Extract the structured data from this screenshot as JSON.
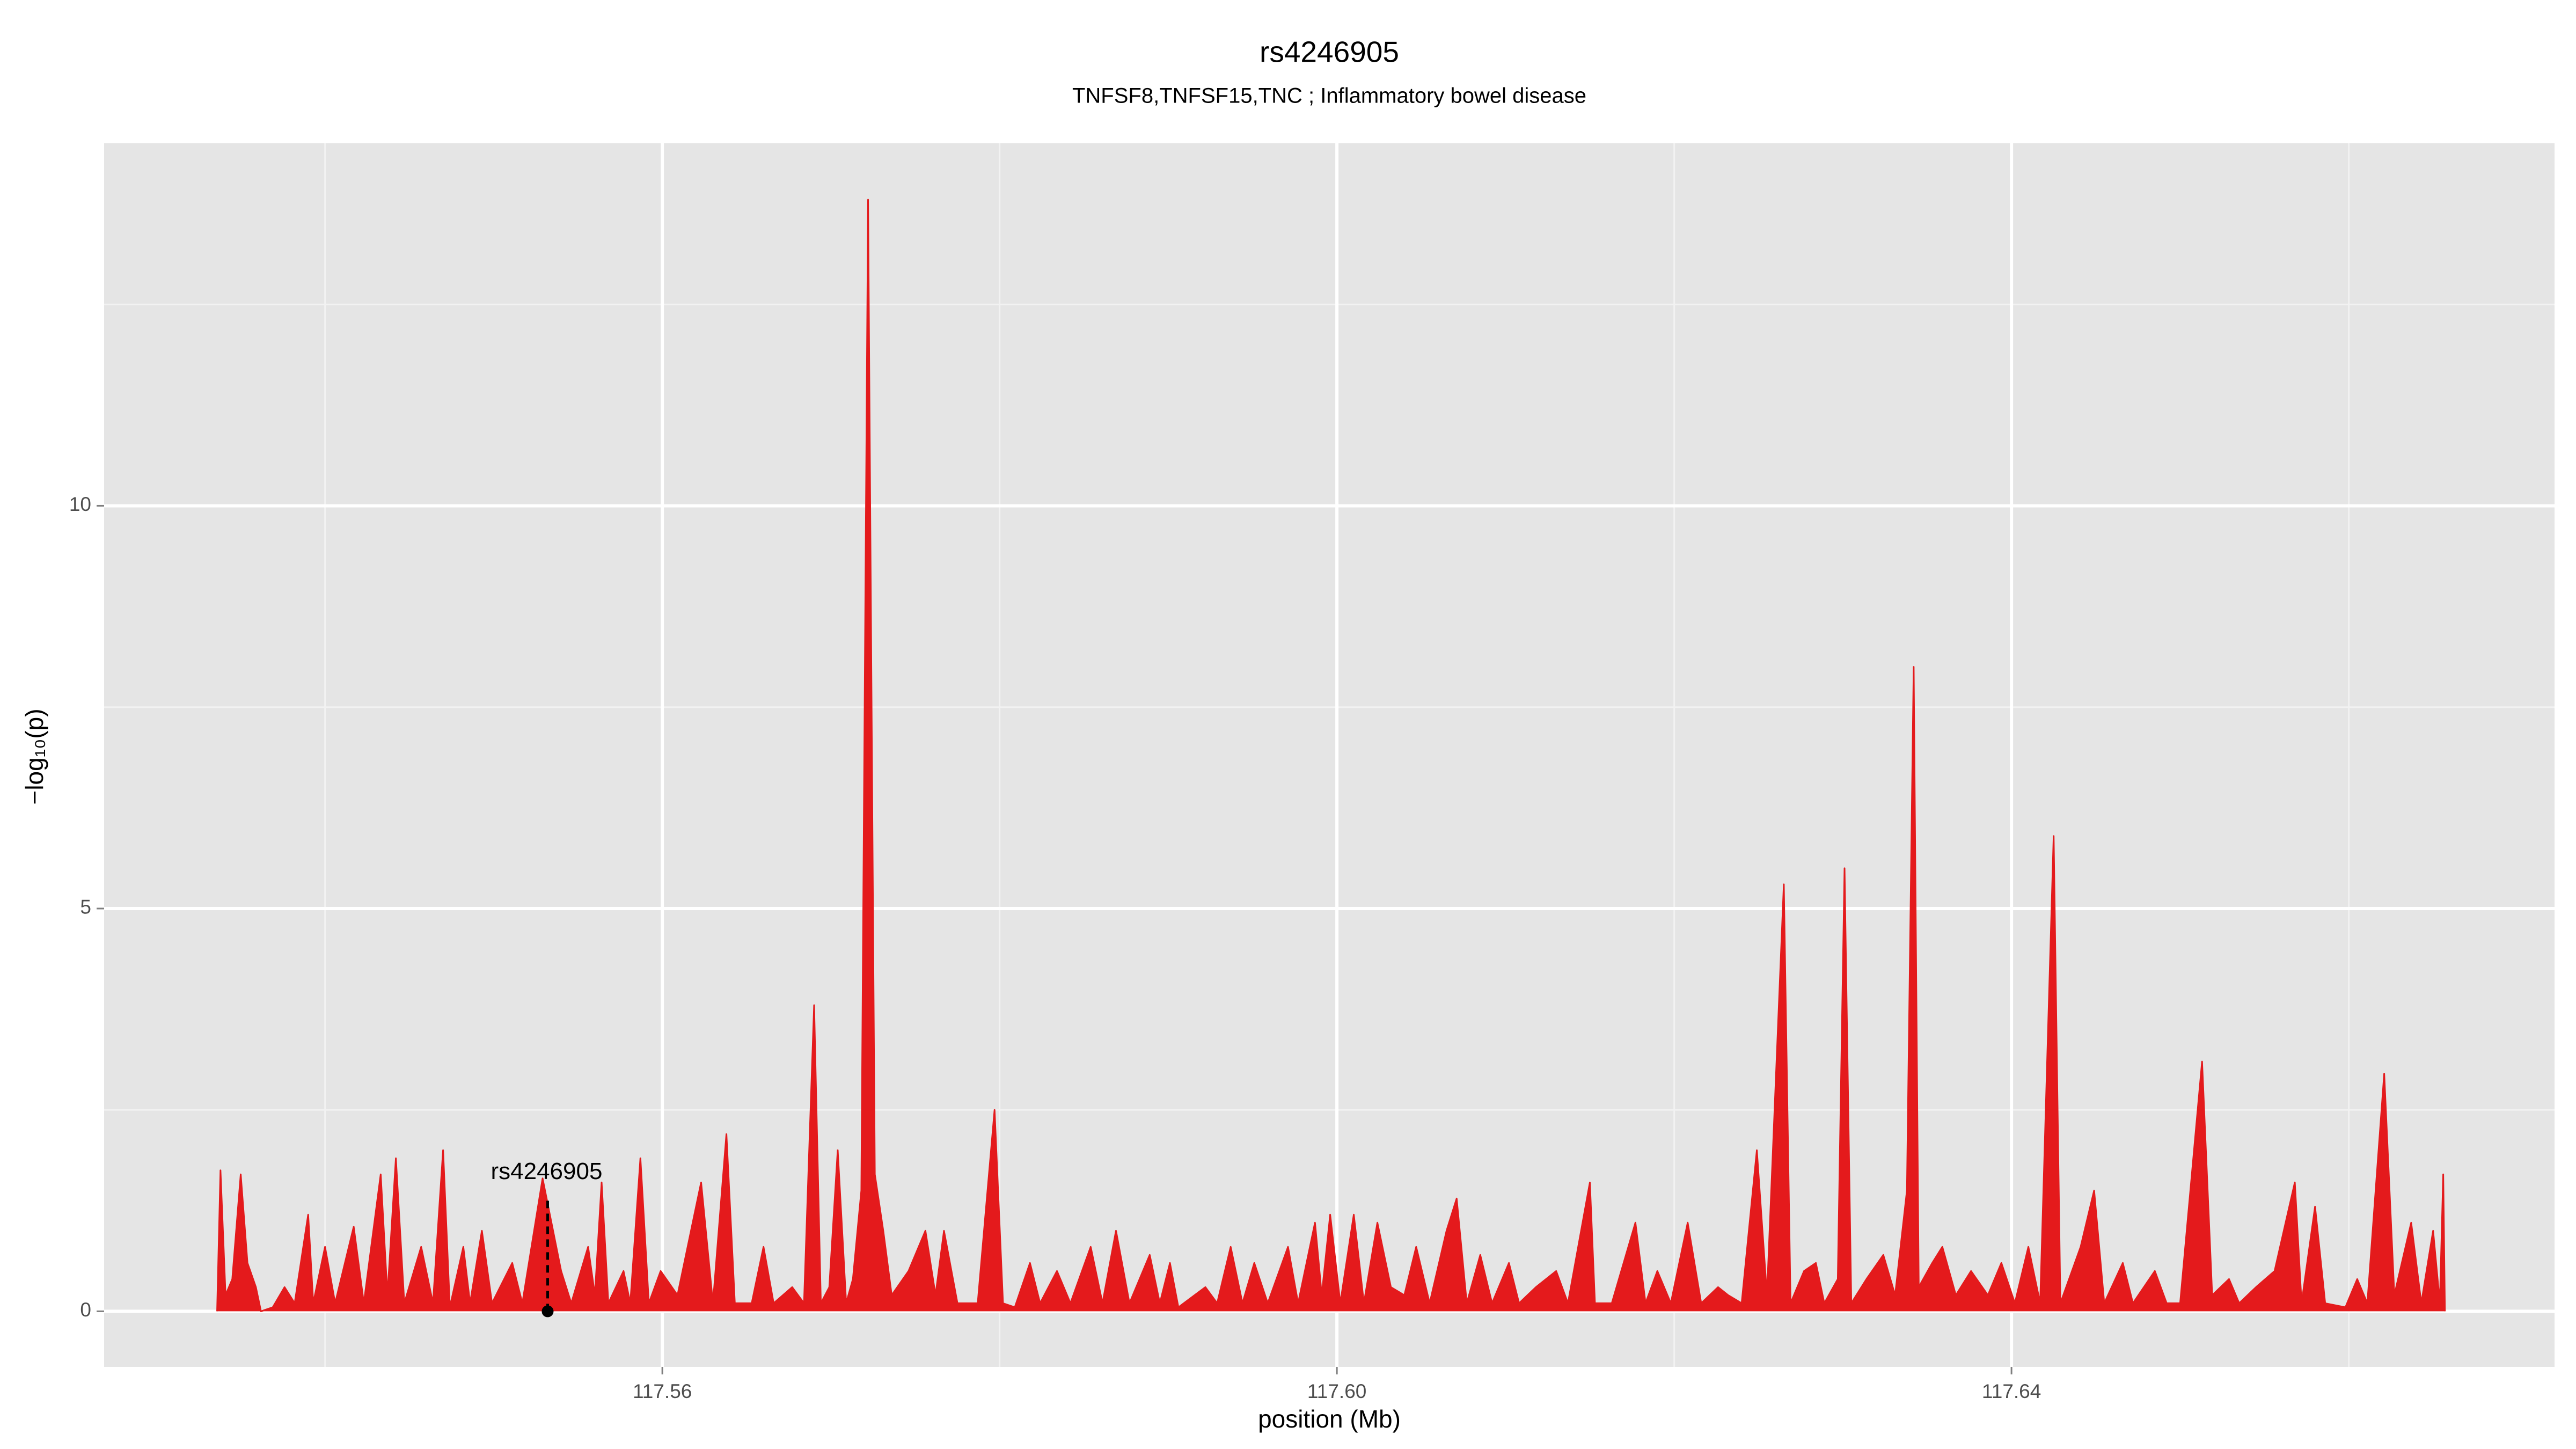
{
  "chart_data": {
    "type": "area",
    "title": "rs4246905",
    "subtitle": "TNFSF8,TNFSF15,TNC ; Inflammatory bowel disease",
    "x_label": "position (Mb)",
    "y_label": "−log₁₀(p)",
    "color": "#e41a1c",
    "grid": true,
    "xlim": [
      117.5269,
      117.6722
    ],
    "ylim": [
      -0.69,
      14.5
    ],
    "xticks": [
      117.56,
      117.6,
      117.64
    ],
    "xtick_labels": [
      "117.56",
      "117.60",
      "117.64"
    ],
    "yticks": [
      0,
      5,
      10
    ],
    "annotation": {
      "label": "rs4246905",
      "x": 117.5532,
      "y": 0
    },
    "x": [
      117.5336,
      117.5338,
      117.5341,
      117.5345,
      117.535,
      117.5354,
      117.5359,
      117.5362,
      117.5369,
      117.5376,
      117.5382,
      117.539,
      117.5393,
      117.54,
      117.5406,
      117.5417,
      117.5423,
      117.5433,
      117.5437,
      117.5442,
      117.5447,
      117.5457,
      117.5464,
      117.547,
      117.5474,
      117.5482,
      117.5486,
      117.5493,
      117.5499,
      117.5511,
      117.5517,
      117.5529,
      117.554,
      117.5546,
      117.5556,
      117.556,
      117.5564,
      117.5568,
      117.5577,
      117.5581,
      117.5587,
      117.5592,
      117.5599,
      117.5609,
      117.5623,
      117.563,
      117.5638,
      117.5643,
      117.5653,
      117.566,
      117.5666,
      117.5677,
      117.5684,
      117.569,
      117.5694,
      117.5699,
      117.5704,
      117.5709,
      117.5713,
      117.5718,
      117.5722,
      117.5726,
      117.5731,
      117.5736,
      117.5746,
      117.5756,
      117.5762,
      117.5767,
      117.5775,
      117.5787,
      117.5797,
      117.5802,
      117.5809,
      117.5818,
      117.5824,
      117.5834,
      117.5842,
      117.5854,
      117.5861,
      117.5869,
      117.5877,
      117.5889,
      117.5895,
      117.5901,
      117.5906,
      117.5922,
      117.5929,
      117.5937,
      117.5944,
      117.5951,
      117.5959,
      117.5971,
      117.5977,
      117.5987,
      117.5991,
      117.5996,
      117.6002,
      117.601,
      117.6016,
      117.6024,
      117.6032,
      117.604,
      117.6047,
      117.6055,
      117.6065,
      117.6071,
      117.6077,
      117.6085,
      117.6092,
      117.6102,
      117.6108,
      117.6118,
      117.613,
      117.6137,
      117.615,
      117.6153,
      117.6163,
      117.6177,
      117.6183,
      117.619,
      117.6198,
      117.6208,
      117.6216,
      117.6226,
      117.6232,
      117.624,
      117.6249,
      117.6255,
      117.6265,
      117.6269,
      117.6277,
      117.6284,
      117.6289,
      117.6297,
      117.6301,
      117.6305,
      117.6314,
      117.6324,
      117.6331,
      117.6338,
      117.6342,
      117.6345,
      117.6353,
      117.6359,
      117.6367,
      117.6376,
      117.6386,
      117.6394,
      117.6402,
      117.641,
      117.6417,
      117.6425,
      117.6429,
      117.6441,
      117.6449,
      117.6455,
      117.6466,
      117.6472,
      117.6485,
      117.6492,
      117.65,
      117.6513,
      117.6519,
      117.6529,
      117.6535,
      117.6545,
      117.6556,
      117.6568,
      117.6572,
      117.658,
      117.6586,
      117.6598,
      117.6605,
      117.6611,
      117.6621,
      117.6627,
      117.6637,
      117.6643,
      117.665,
      117.6654,
      117.6656,
      117.6657
    ],
    "values": [
      0,
      1.75,
      0.2,
      0.4,
      1.7,
      0.6,
      0.3,
      0,
      0.05,
      0.3,
      0.1,
      1.2,
      0.1,
      0.8,
      0.1,
      1.05,
      0.1,
      1.7,
      0.2,
      1.9,
      0.1,
      0.8,
      0.1,
      2.0,
      0.05,
      0.8,
      0.1,
      1.0,
      0.1,
      0.6,
      0.1,
      1.65,
      0.5,
      0.1,
      0.8,
      0.2,
      1.6,
      0.1,
      0.5,
      0.1,
      1.9,
      0.1,
      0.5,
      0.2,
      1.6,
      0.1,
      2.2,
      0.1,
      0.1,
      0.8,
      0.1,
      0.3,
      0.1,
      3.8,
      0.1,
      0.3,
      2.0,
      0.1,
      0.4,
      1.5,
      13.8,
      1.7,
      1.0,
      0.2,
      0.5,
      1.0,
      0.2,
      1.0,
      0.1,
      0.1,
      2.5,
      0.1,
      0.05,
      0.6,
      0.1,
      0.5,
      0.1,
      0.8,
      0.1,
      1.0,
      0.1,
      0.7,
      0.1,
      0.6,
      0.05,
      0.3,
      0.1,
      0.8,
      0.1,
      0.6,
      0.1,
      0.8,
      0.1,
      1.1,
      0.2,
      1.2,
      0.1,
      1.2,
      0.1,
      1.1,
      0.3,
      0.2,
      0.8,
      0.1,
      1.0,
      1.4,
      0.1,
      0.7,
      0.1,
      0.6,
      0.1,
      0.3,
      0.5,
      0.1,
      1.6,
      0.1,
      0.1,
      1.1,
      0.1,
      0.5,
      0.1,
      1.1,
      0.1,
      0.3,
      0.2,
      0.1,
      2.0,
      0.2,
      5.3,
      0.1,
      0.5,
      0.6,
      0.1,
      0.4,
      5.5,
      0.1,
      0.4,
      0.7,
      0.2,
      1.5,
      8.0,
      0.3,
      0.6,
      0.8,
      0.2,
      0.5,
      0.2,
      0.6,
      0.1,
      0.8,
      0.1,
      5.9,
      0.1,
      0.8,
      1.5,
      0.1,
      0.6,
      0.1,
      0.5,
      0.1,
      0.1,
      3.1,
      0.2,
      0.4,
      0.1,
      0.3,
      0.5,
      1.6,
      0.1,
      1.3,
      0.1,
      0.05,
      0.4,
      0.1,
      2.95,
      0.2,
      1.1,
      0.1,
      1.0,
      0.1,
      1.7,
      0
    ]
  }
}
